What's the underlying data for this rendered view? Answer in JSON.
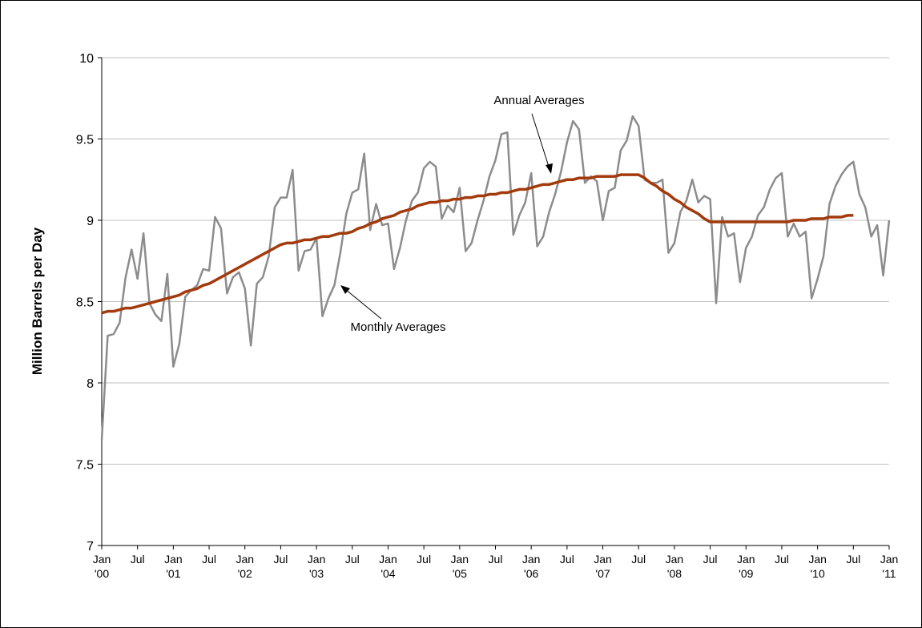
{
  "chart_data": {
    "type": "line",
    "ylabel": "Million Barrels per Day",
    "ylim": [
      7,
      10
    ],
    "yticks": [
      7,
      7.5,
      8,
      8.5,
      9,
      9.5,
      10
    ],
    "grid": true,
    "categories": [
      [
        "Jan",
        "'00"
      ],
      null,
      null,
      null,
      null,
      null,
      [
        "Jul"
      ],
      null,
      null,
      null,
      null,
      null,
      [
        "Jan",
        "'01"
      ],
      null,
      null,
      null,
      null,
      null,
      [
        "Jul"
      ],
      null,
      null,
      null,
      null,
      null,
      [
        "Jan",
        "'02"
      ],
      null,
      null,
      null,
      null,
      null,
      [
        "Jul"
      ],
      null,
      null,
      null,
      null,
      null,
      [
        "Jan",
        "'03"
      ],
      null,
      null,
      null,
      null,
      null,
      [
        "Jul"
      ],
      null,
      null,
      null,
      null,
      null,
      [
        "Jan",
        "'04"
      ],
      null,
      null,
      null,
      null,
      null,
      [
        "Jul"
      ],
      null,
      null,
      null,
      null,
      null,
      [
        "Jan",
        "'05"
      ],
      null,
      null,
      null,
      null,
      null,
      [
        "Jul"
      ],
      null,
      null,
      null,
      null,
      null,
      [
        "Jan",
        "'06"
      ],
      null,
      null,
      null,
      null,
      null,
      [
        "Jul"
      ],
      null,
      null,
      null,
      null,
      null,
      [
        "Jan",
        "'07"
      ],
      null,
      null,
      null,
      null,
      null,
      [
        "Jul"
      ],
      null,
      null,
      null,
      null,
      null,
      [
        "Jan",
        "'08"
      ],
      null,
      null,
      null,
      null,
      null,
      [
        "Jul"
      ],
      null,
      null,
      null,
      null,
      null,
      [
        "Jan",
        "'09"
      ],
      null,
      null,
      null,
      null,
      null,
      [
        "Jul"
      ],
      null,
      null,
      null,
      null,
      null,
      [
        "Jan",
        "'10"
      ],
      null,
      null,
      null,
      null,
      null,
      [
        "Jul"
      ],
      null,
      null,
      null,
      null,
      null,
      [
        "Jan",
        "'11"
      ]
    ],
    "series": [
      {
        "name": "Monthly Averages",
        "color": "#8c8c8c",
        "values": [
          7.65,
          8.29,
          8.3,
          8.37,
          8.65,
          8.82,
          8.64,
          8.92,
          8.49,
          8.42,
          8.38,
          8.67,
          8.1,
          8.24,
          8.53,
          8.57,
          8.6,
          8.7,
          8.69,
          9.02,
          8.95,
          8.55,
          8.65,
          8.68,
          8.58,
          8.23,
          8.61,
          8.65,
          8.78,
          9.08,
          9.14,
          9.14,
          9.31,
          8.69,
          8.81,
          8.82,
          8.89,
          8.41,
          8.52,
          8.6,
          8.8,
          9.04,
          9.17,
          9.19,
          9.41,
          8.94,
          9.1,
          8.97,
          8.98,
          8.7,
          8.83,
          9.0,
          9.12,
          9.17,
          9.32,
          9.36,
          9.33,
          9.01,
          9.09,
          9.05,
          9.2,
          8.81,
          8.86,
          9.0,
          9.12,
          9.27,
          9.37,
          9.53,
          9.54,
          8.91,
          9.03,
          9.11,
          9.29,
          8.84,
          8.9,
          9.05,
          9.16,
          9.3,
          9.48,
          9.61,
          9.56,
          9.23,
          9.27,
          9.24,
          9.0,
          9.18,
          9.2,
          9.43,
          9.49,
          9.64,
          9.58,
          9.25,
          9.23,
          9.23,
          9.25,
          8.8,
          8.86,
          9.05,
          9.12,
          9.25,
          9.11,
          9.15,
          9.13,
          8.49,
          9.02,
          8.9,
          8.92,
          8.62,
          8.83,
          8.9,
          9.03,
          9.08,
          9.19,
          9.26,
          9.29,
          8.9,
          8.98,
          8.9,
          8.93,
          8.52,
          8.64,
          8.78,
          9.1,
          9.21,
          9.28,
          9.33,
          9.36,
          9.16,
          9.08,
          8.9,
          8.97,
          8.66,
          9.0
        ]
      },
      {
        "name": "Annual Averages",
        "color": "#a33a0c",
        "values": [
          8.43,
          8.44,
          8.44,
          8.45,
          8.46,
          8.46,
          8.47,
          8.48,
          8.49,
          8.5,
          8.51,
          8.52,
          8.53,
          8.54,
          8.56,
          8.57,
          8.58,
          8.6,
          8.61,
          8.63,
          8.65,
          8.67,
          8.69,
          8.71,
          8.73,
          8.75,
          8.77,
          8.79,
          8.81,
          8.83,
          8.85,
          8.86,
          8.86,
          8.87,
          8.88,
          8.88,
          8.89,
          8.9,
          8.9,
          8.91,
          8.92,
          8.92,
          8.93,
          8.95,
          8.96,
          8.98,
          8.99,
          9.01,
          9.02,
          9.03,
          9.05,
          9.06,
          9.07,
          9.09,
          9.1,
          9.11,
          9.11,
          9.12,
          9.12,
          9.13,
          9.13,
          9.14,
          9.14,
          9.15,
          9.15,
          9.16,
          9.16,
          9.17,
          9.17,
          9.18,
          9.19,
          9.19,
          9.2,
          9.21,
          9.22,
          9.22,
          9.23,
          9.24,
          9.25,
          9.25,
          9.26,
          9.26,
          9.26,
          9.27,
          9.27,
          9.27,
          9.27,
          9.28,
          9.28,
          9.28,
          9.28,
          9.26,
          9.23,
          9.21,
          9.18,
          9.16,
          9.13,
          9.11,
          9.08,
          9.06,
          9.04,
          9.01,
          8.99,
          8.99,
          8.99,
          8.99,
          8.99,
          8.99,
          8.99,
          8.99,
          8.99,
          8.99,
          8.99,
          8.99,
          8.99,
          8.99,
          9.0,
          9.0,
          9.0,
          9.01,
          9.01,
          9.01,
          9.02,
          9.02,
          9.02,
          9.03,
          9.03,
          null,
          null,
          null,
          null,
          null,
          null
        ]
      }
    ]
  }
}
